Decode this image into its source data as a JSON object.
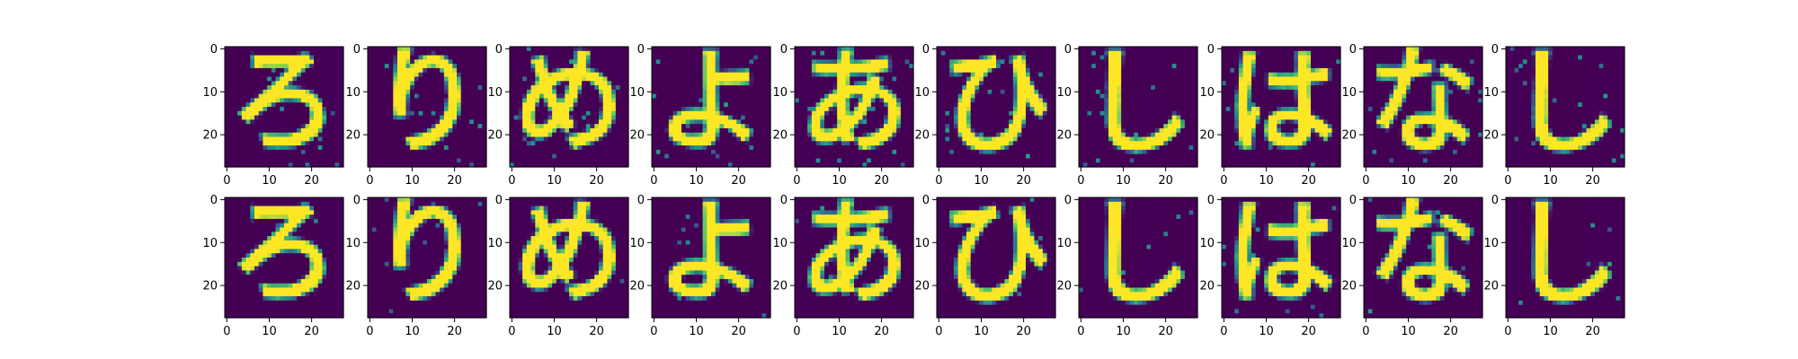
{
  "figure": {
    "rows": 2,
    "cols": 10,
    "colormap": [
      "#440154",
      "#3b528b",
      "#21918c",
      "#5ec962",
      "#fde725"
    ],
    "background": "#ffffff"
  },
  "chart_data": {
    "type": "heatmap",
    "image_size": [
      28,
      28
    ],
    "xlim": [
      0,
      27
    ],
    "ylim": [
      27,
      0
    ],
    "x_ticks": [
      0,
      10,
      20
    ],
    "y_ticks": [
      0,
      10,
      20
    ],
    "x_tick_labels": [
      "0",
      "10",
      "20"
    ],
    "y_tick_labels": [
      "0",
      "10",
      "20"
    ],
    "rows": [
      {
        "panels": [
          {
            "glyph": "ろ",
            "noise": 0.18
          },
          {
            "glyph": "り",
            "noise": 0.18
          },
          {
            "glyph": "め",
            "noise": 0.18
          },
          {
            "glyph": "よ",
            "noise": 0.18
          },
          {
            "glyph": "あ",
            "noise": 0.18
          },
          {
            "glyph": "ひ",
            "noise": 0.18
          },
          {
            "glyph": "し",
            "noise": 0.18
          },
          {
            "glyph": "は",
            "noise": 0.18
          },
          {
            "glyph": "な",
            "noise": 0.18
          },
          {
            "glyph": "し",
            "noise": 0.18
          }
        ]
      },
      {
        "panels": [
          {
            "glyph": "ろ",
            "noise": 0.08
          },
          {
            "glyph": "り",
            "noise": 0.08
          },
          {
            "glyph": "め",
            "noise": 0.08
          },
          {
            "glyph": "よ",
            "noise": 0.08
          },
          {
            "glyph": "あ",
            "noise": 0.08
          },
          {
            "glyph": "ひ",
            "noise": 0.08
          },
          {
            "glyph": "し",
            "noise": 0.08
          },
          {
            "glyph": "は",
            "noise": 0.08
          },
          {
            "glyph": "な",
            "noise": 0.08
          },
          {
            "glyph": "し",
            "noise": 0.08
          }
        ]
      }
    ]
  }
}
